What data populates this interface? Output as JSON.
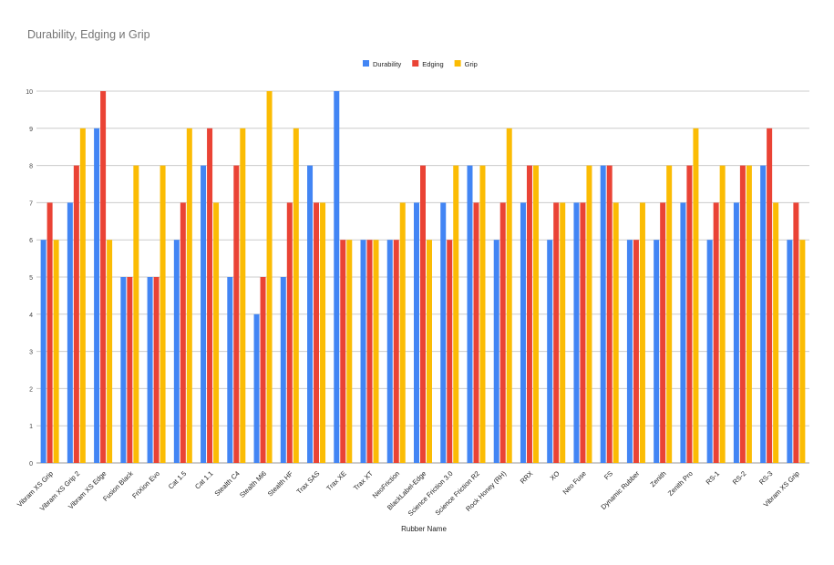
{
  "chart_data": {
    "type": "bar",
    "title": "Durability, Edging и Grip",
    "xlabel": "Rubber Name",
    "ylabel": "",
    "ylim": [
      0,
      10
    ],
    "yticks": [
      0,
      1,
      2,
      3,
      4,
      5,
      6,
      7,
      8,
      9,
      10
    ],
    "grid": true,
    "legend_position": "top",
    "categories": [
      "Vibram XS Grip",
      "Vibram XS Grip 2",
      "Vibram XS Edge",
      "Fusion Black",
      "FriXion Evo",
      "Cat 1.5",
      "Cat 1.1",
      "Stealth C4",
      "Stealth Mi6",
      "Stealth HF",
      "Trax SAS",
      "Trax XE",
      "Trax XT",
      "NeoFriction",
      "BlackLabel-Edge",
      "Science Friction 3.0",
      "Science Friction R2",
      "Rock Honey (RH)",
      "RRX",
      "XO",
      "Neo Fuse",
      "FS",
      "Dynamic Rubber",
      "Zenith",
      "Zenith Pro",
      "RS-1",
      "RS-2",
      "RS-3",
      "Vibram XS Grip"
    ],
    "series": [
      {
        "name": "Durability",
        "color": "#4285f4",
        "values": [
          6,
          7,
          9,
          5,
          5,
          6,
          8,
          5,
          4,
          5,
          8,
          10,
          6,
          6,
          7,
          7,
          8,
          6,
          7,
          6,
          7,
          8,
          6,
          6,
          7,
          6,
          7,
          8,
          6
        ]
      },
      {
        "name": "Edging",
        "color": "#ea4335",
        "values": [
          7,
          8,
          10,
          5,
          5,
          7,
          9,
          8,
          5,
          7,
          7,
          6,
          6,
          6,
          8,
          6,
          7,
          7,
          8,
          7,
          7,
          8,
          6,
          7,
          8,
          7,
          8,
          9,
          7
        ]
      },
      {
        "name": "Grip",
        "color": "#fbbc04",
        "values": [
          6,
          9,
          6,
          8,
          8,
          9,
          7,
          9,
          10,
          9,
          7,
          6,
          6,
          7,
          6,
          8,
          8,
          9,
          8,
          7,
          8,
          7,
          7,
          8,
          9,
          8,
          8,
          7,
          6
        ]
      }
    ]
  }
}
